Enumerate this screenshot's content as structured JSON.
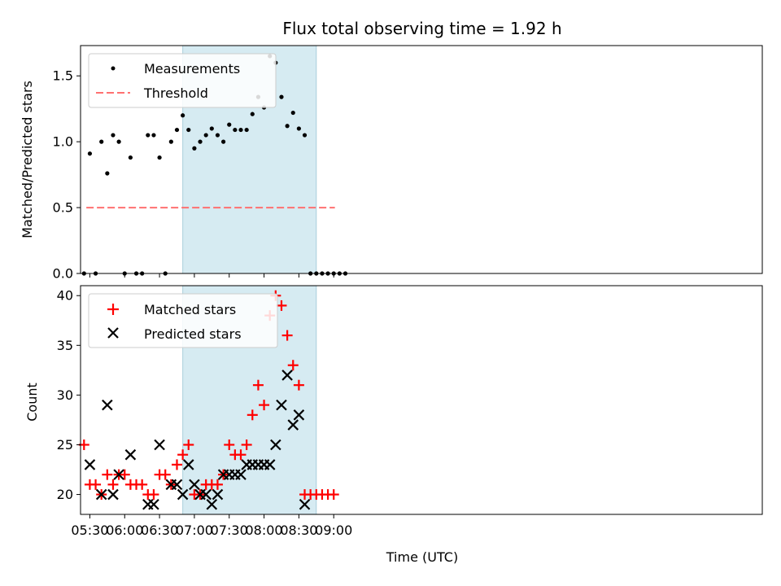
{
  "chart_data": [
    {
      "type": "scatter",
      "title": "Flux total observing time = 1.92 h",
      "xlabel": "",
      "ylabel": "Matched/Predicted stars",
      "xlim": [
        322,
        909
      ],
      "ylim": [
        0,
        1.73
      ],
      "yticks": [
        0.0,
        0.5,
        1.0,
        1.5
      ],
      "ytick_labels": [
        "0.0",
        "0.5",
        "1.0",
        "1.5"
      ],
      "xticks": [
        330,
        360,
        390,
        420,
        450,
        480,
        510,
        540
      ],
      "shaded_region": [
        410,
        525
      ],
      "threshold": {
        "label": "Threshold",
        "value": 0.5,
        "x_range": [
          327,
          541
        ],
        "color": "#ff7070"
      },
      "series": [
        {
          "name": "Measurements",
          "color": "#000000",
          "x": [
            325,
            330,
            335,
            340,
            345,
            350,
            355,
            360,
            365,
            370,
            375,
            380,
            385,
            390,
            395,
            400,
            405,
            410,
            415,
            420,
            425,
            430,
            435,
            440,
            445,
            450,
            455,
            460,
            465,
            470,
            475,
            480,
            485,
            490,
            495,
            500,
            505,
            510,
            515,
            520,
            525,
            530,
            535,
            540,
            545,
            550
          ],
          "y": [
            0.0,
            0.91,
            0.0,
            1.0,
            0.76,
            1.05,
            1.0,
            0.0,
            0.88,
            0.0,
            0.0,
            1.05,
            1.05,
            0.88,
            0.0,
            1.0,
            1.09,
            1.2,
            1.09,
            0.95,
            1.0,
            1.05,
            1.1,
            1.05,
            1.0,
            1.13,
            1.09,
            1.09,
            1.09,
            1.21,
            1.34,
            1.26,
            1.65,
            1.6,
            1.34,
            1.12,
            1.22,
            1.1,
            1.05,
            0.0,
            0.0,
            0.0,
            0.0,
            0.0,
            0.0,
            0.0
          ]
        }
      ],
      "legend": {
        "entries": [
          "Measurements",
          "Threshold"
        ],
        "position": "upper left"
      }
    },
    {
      "type": "scatter",
      "title": "",
      "xlabel": "Time (UTC)",
      "ylabel": "Count",
      "xlim": [
        322,
        909
      ],
      "ylim": [
        18,
        41
      ],
      "yticks": [
        20,
        25,
        30,
        35,
        40
      ],
      "ytick_labels": [
        "20",
        "25",
        "30",
        "35",
        "40"
      ],
      "xticks": [
        330,
        360,
        390,
        420,
        450,
        480,
        510,
        540
      ],
      "xtick_labels": [
        "05:30",
        "06:00",
        "06:30",
        "07:00",
        "07:30",
        "08:00",
        "08:30",
        "09:00"
      ],
      "shaded_region": [
        410,
        525
      ],
      "series": [
        {
          "name": "Matched stars",
          "color": "#ff0000",
          "marker": "plus",
          "x": [
            325,
            330,
            335,
            340,
            345,
            350,
            355,
            360,
            365,
            370,
            375,
            380,
            385,
            390,
            395,
            400,
            405,
            410,
            415,
            420,
            425,
            430,
            435,
            440,
            445,
            450,
            455,
            460,
            465,
            470,
            475,
            480,
            485,
            490,
            495,
            500,
            505,
            510,
            515,
            520,
            525,
            530,
            535,
            540
          ],
          "y": [
            25,
            21,
            21,
            20,
            22,
            21,
            22,
            22,
            21,
            21,
            21,
            20,
            20,
            22,
            22,
            21,
            23,
            24,
            25,
            20,
            20,
            21,
            21,
            21,
            22,
            25,
            24,
            24,
            25,
            28,
            31,
            29,
            38,
            40,
            39,
            36,
            33,
            31,
            20,
            20,
            20,
            20,
            20,
            20
          ]
        },
        {
          "name": "Predicted stars",
          "color": "#000000",
          "marker": "x",
          "x": [
            330,
            340,
            345,
            350,
            355,
            365,
            380,
            385,
            390,
            400,
            405,
            410,
            415,
            420,
            425,
            430,
            435,
            440,
            445,
            450,
            455,
            460,
            465,
            470,
            475,
            480,
            485,
            490,
            495,
            500,
            505,
            510,
            515
          ],
          "y": [
            23,
            20,
            29,
            20,
            22,
            24,
            19,
            19,
            25,
            21,
            21,
            20,
            23,
            21,
            20,
            20,
            19,
            20,
            22,
            22,
            22,
            22,
            23,
            23,
            23,
            23,
            23,
            25,
            29,
            32,
            27,
            28,
            19
          ]
        }
      ],
      "legend": {
        "entries": [
          "Matched stars",
          "Predicted stars"
        ],
        "position": "upper left"
      }
    }
  ]
}
